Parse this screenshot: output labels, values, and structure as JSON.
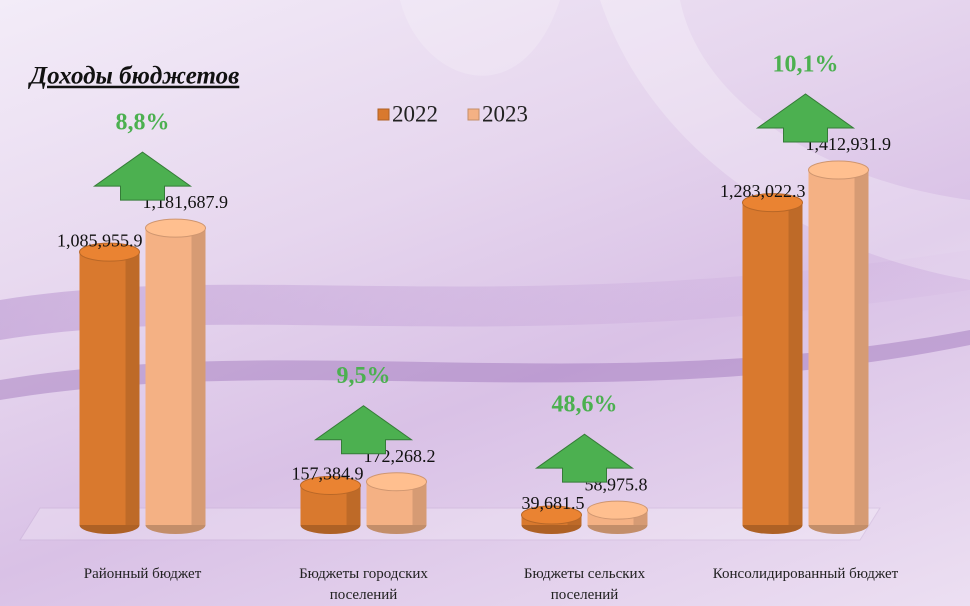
{
  "chart_data": {
    "type": "bar3d",
    "title": "Доходы бюджетов",
    "categories": [
      "Районный бюджет",
      "Бюджеты городских поселений",
      "Бюджеты сельских поселений",
      "Консолидированный бюджет"
    ],
    "series": [
      {
        "name": "2022",
        "color": "#d9792e",
        "values": [
          1085955.9,
          157384.9,
          39681.5,
          1283022.3
        ],
        "value_labels": [
          "1,085,955.9",
          "157,384.9",
          "39,681.5",
          "1,283,022.3"
        ]
      },
      {
        "name": "2023",
        "color": "#f4b184",
        "values": [
          1181687.9,
          172268.2,
          58975.8,
          1412931.9
        ],
        "value_labels": [
          "1,181,687.9",
          "172,268.2",
          "58,975.8",
          "1,412,931.9"
        ]
      }
    ],
    "annotations": [
      "8,8%",
      "9,5%",
      "48,6%",
      "10,1%"
    ],
    "annotation_color": "#4cb050"
  }
}
